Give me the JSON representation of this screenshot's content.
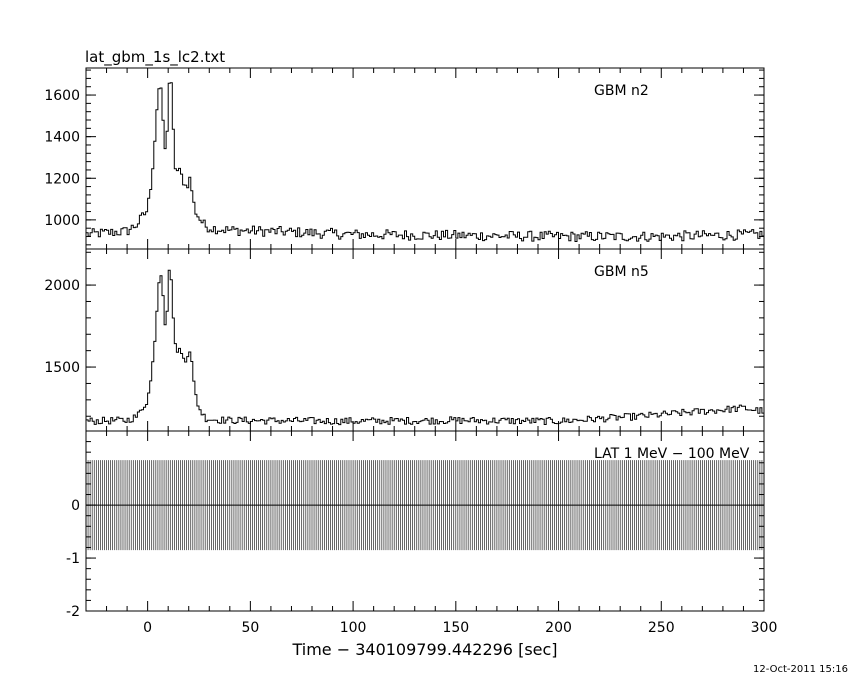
{
  "chart_data": {
    "type": "line",
    "title": "lat_gbm_1s_lc2.txt",
    "xlabel": "Time − 340109799.442296 [sec]",
    "xlim": [
      -30,
      300
    ],
    "x_ticks": [
      0,
      50,
      100,
      150,
      200,
      250,
      300
    ],
    "timestamp": "12-Oct-2011 15:16",
    "panels": [
      {
        "label": "GBM n2",
        "ylim": [
          860,
          1730
        ],
        "y_ticks": [
          1000,
          1200,
          1400,
          1600
        ],
        "baseline": 930,
        "noise": 25,
        "series": [
          {
            "x": [
              -30,
              -10,
              -5,
              0,
              2,
              4,
              5,
              6,
              7,
              8,
              9,
              10,
              11,
              12,
              13,
              14,
              15,
              17,
              19,
              20,
              21,
              22,
              23,
              25,
              28,
              32,
              40,
              60,
              100,
              150,
              200,
              250,
              300
            ],
            "y": [
              930,
              945,
              980,
              1050,
              1200,
              1450,
              1620,
              1640,
              1580,
              1380,
              1280,
              1600,
              1720,
              1560,
              1280,
              1230,
              1240,
              1200,
              1150,
              1200,
              1190,
              1100,
              1050,
              1010,
              970,
              960,
              950,
              945,
              930,
              925,
              920,
              920,
              930
            ]
          }
        ]
      },
      {
        "label": "GBM n5",
        "ylim": [
          1110,
          2220
        ],
        "y_ticks": [
          1500,
          2000
        ],
        "baseline": 1170,
        "noise": 22,
        "series": [
          {
            "x": [
              -30,
              -10,
              -5,
              0,
              2,
              4,
              5,
              6,
              7,
              8,
              9,
              10,
              11,
              12,
              13,
              14,
              15,
              17,
              19,
              20,
              21,
              22,
              23,
              25,
              28,
              32,
              40,
              100,
              150,
              200,
              240,
              260,
              280,
              290,
              300
            ],
            "y": [
              1170,
              1175,
              1200,
              1300,
              1450,
              1750,
              1950,
              2100,
              2050,
              1850,
              1700,
              2000,
              2150,
              1950,
              1650,
              1600,
              1620,
              1560,
              1550,
              1610,
              1600,
              1450,
              1350,
              1250,
              1190,
              1180,
              1175,
              1170,
              1175,
              1170,
              1200,
              1220,
              1240,
              1250,
              1230
            ]
          }
        ]
      },
      {
        "label": "LAT 1 MeV − 100 MeV",
        "ylim": [
          -2,
          1.4
        ],
        "y_ticks": [
          -2,
          -1,
          0
        ],
        "series": [
          {
            "kind": "error_bars",
            "value": 0,
            "error": 0.85,
            "x_start": -30,
            "x_end": 300,
            "step": 1
          }
        ]
      }
    ]
  }
}
